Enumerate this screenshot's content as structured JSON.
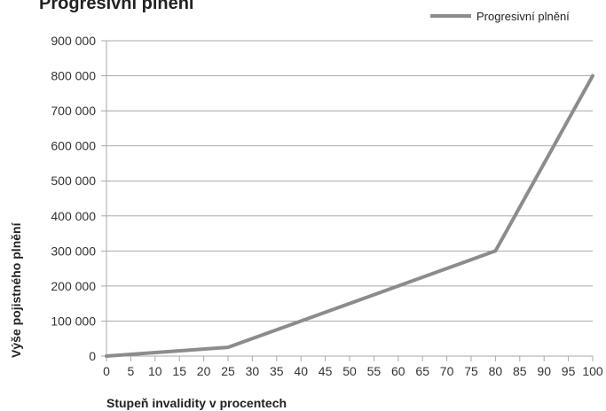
{
  "chart_data": {
    "type": "line",
    "title": "Progresivní plnění",
    "xlabel": "Stupeň invalidity v procentech",
    "ylabel": "Výše pojistného plnění",
    "legend": {
      "placement": "top-right"
    },
    "xlim": [
      0,
      100
    ],
    "ylim": [
      0,
      900000
    ],
    "x_ticks": [
      "0",
      "5",
      "10",
      "15",
      "20",
      "25",
      "30",
      "35",
      "40",
      "45",
      "50",
      "55",
      "60",
      "65",
      "70",
      "75",
      "80",
      "85",
      "90",
      "95",
      "100"
    ],
    "x_tick_values": [
      0,
      5,
      10,
      15,
      20,
      25,
      30,
      35,
      40,
      45,
      50,
      55,
      60,
      65,
      70,
      75,
      80,
      85,
      90,
      95,
      100
    ],
    "y_ticks": [
      "0",
      "100 000",
      "200 000",
      "300 000",
      "400 000",
      "500 000",
      "600 000",
      "700 000",
      "800 000",
      "900 000"
    ],
    "y_tick_values": [
      0,
      100000,
      200000,
      300000,
      400000,
      500000,
      600000,
      700000,
      800000,
      900000
    ],
    "grid": true,
    "series": [
      {
        "name": "Progresivní plnění",
        "color": "#8c8c8c",
        "points": [
          [
            0,
            0
          ],
          [
            25,
            25000
          ],
          [
            80,
            300000
          ],
          [
            100,
            800000
          ]
        ]
      }
    ]
  }
}
